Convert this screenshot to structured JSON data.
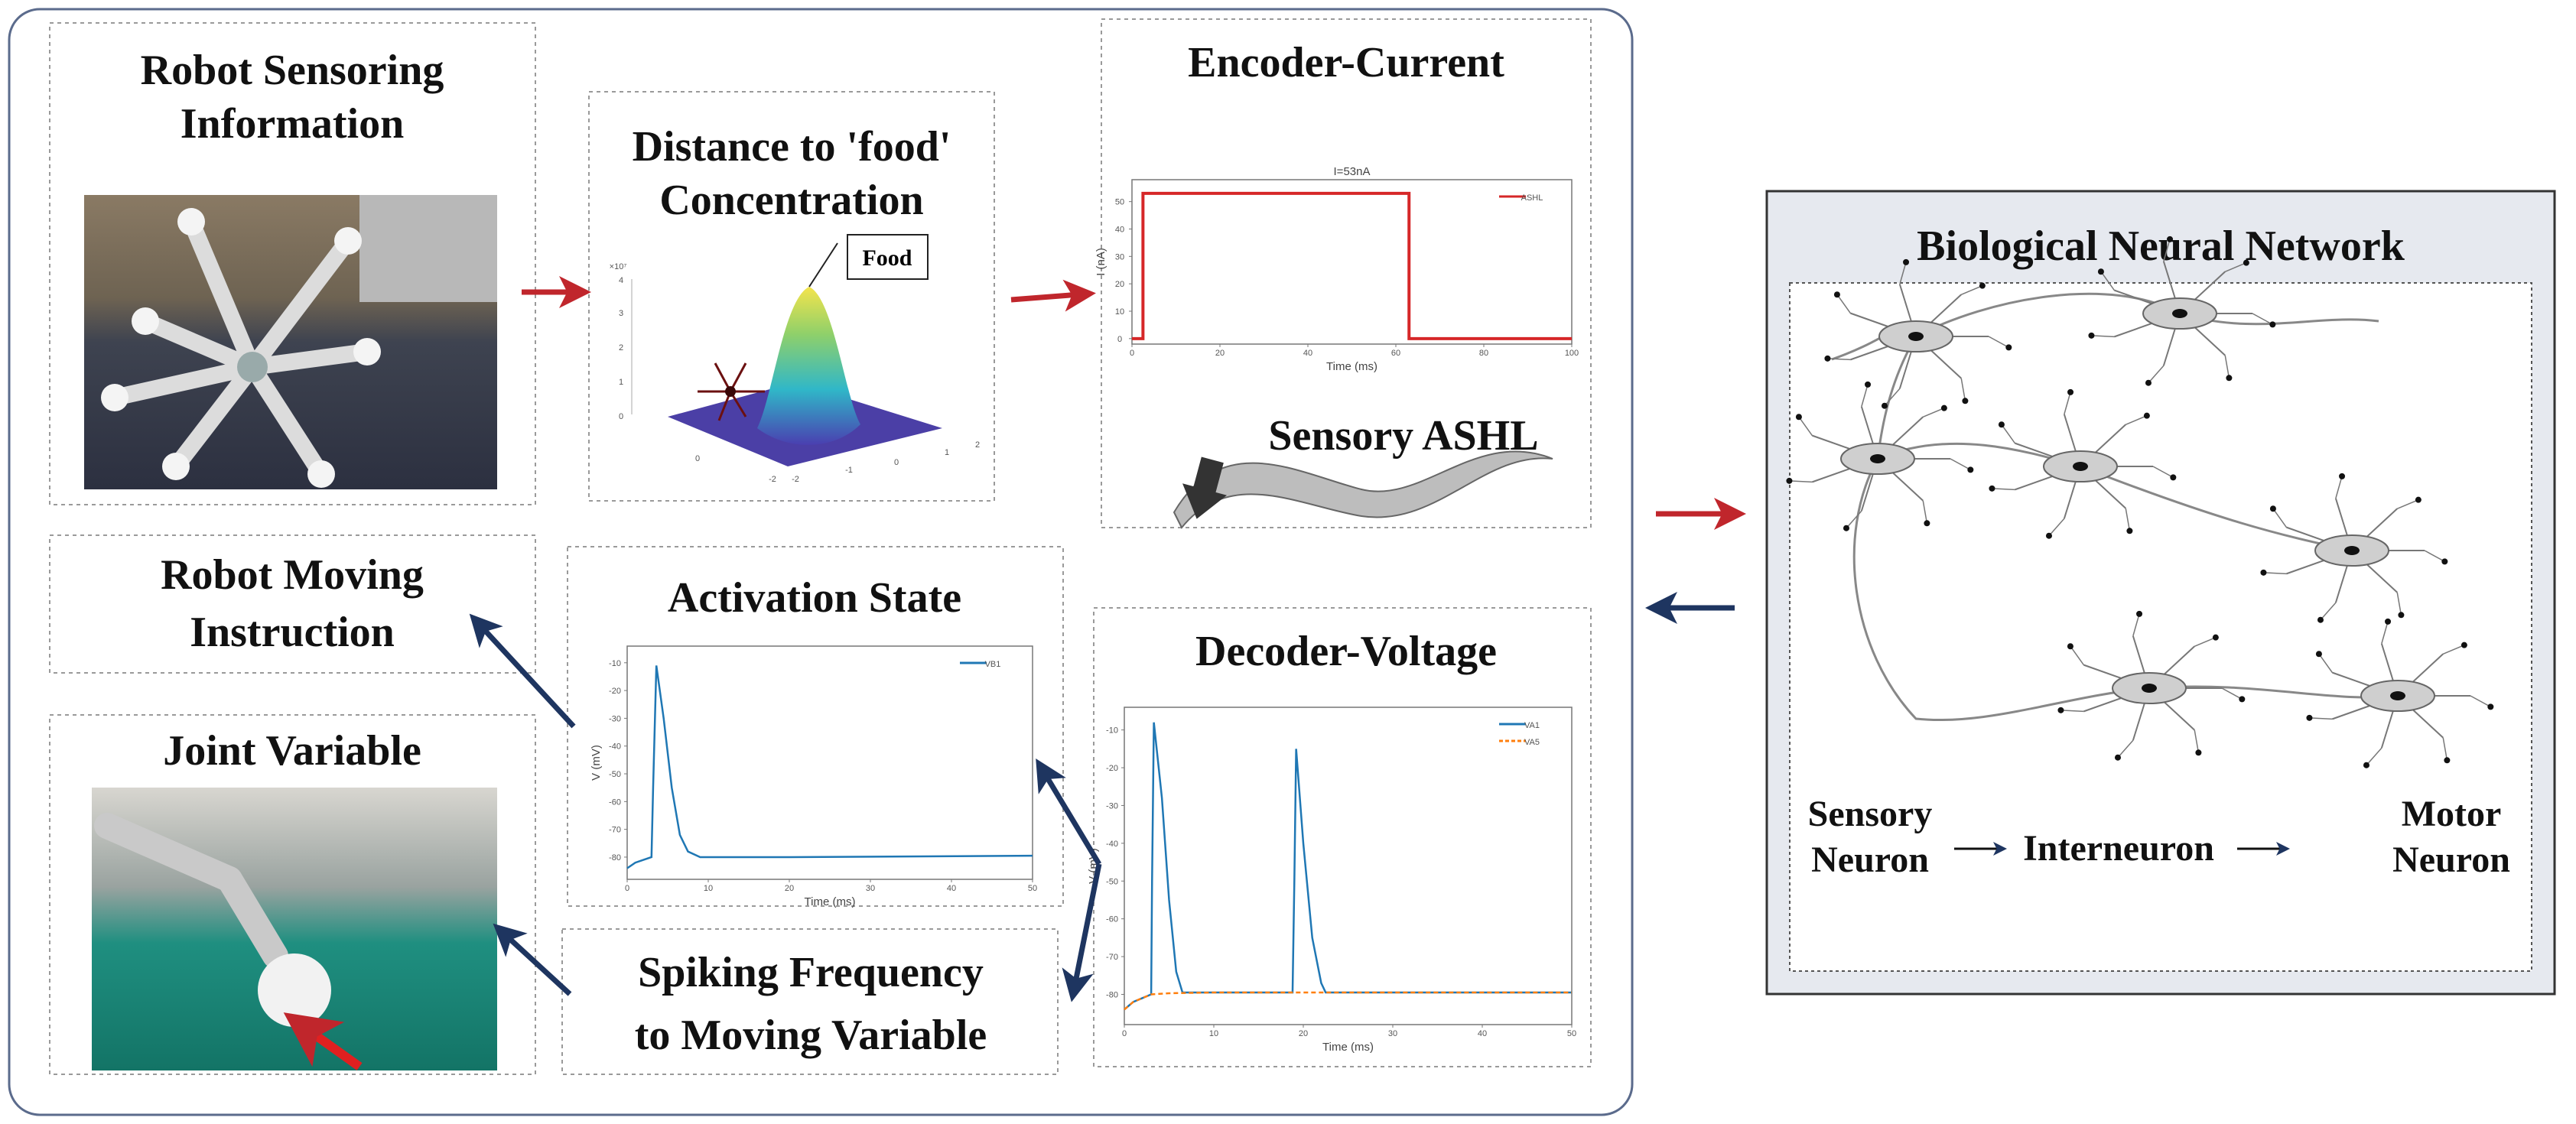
{
  "colors": {
    "forward_arrow": "#c0262c",
    "feedback_arrow": "#1e3560",
    "frame": "#5b6b8c",
    "network_panel": "#e6e9ef"
  },
  "panels": {
    "robot_sensoring": {
      "title_lines": [
        "Robot Sensoring",
        "Information"
      ],
      "image": "robot-photo"
    },
    "distance": {
      "title_lines": [
        "Distance to 'food'",
        "Concentration"
      ],
      "callout": "Food",
      "z_exponent": "×10⁷",
      "z_ticks": [
        "0",
        "1",
        "2",
        "3",
        "4"
      ],
      "x_ticks": [
        "-2",
        "-1",
        "0",
        "1",
        "2"
      ],
      "y_ticks": [
        "2",
        "0",
        "-2"
      ]
    },
    "encoder": {
      "title": "Encoder-Current",
      "subtitle": "Sensory ASHL"
    },
    "robot_moving": {
      "title_lines": [
        "Robot Moving",
        "Instruction"
      ]
    },
    "activation": {
      "title": "Activation State"
    },
    "joint": {
      "title": "Joint Variable",
      "image": "robot-arm-photo"
    },
    "spiking": {
      "title_lines": [
        "Spiking Frequency",
        "to Moving Variable"
      ]
    },
    "decoder": {
      "title": "Decoder-Voltage"
    },
    "network": {
      "title": "Biological Neural Network",
      "flow": [
        "Sensory\nNeuron",
        "Interneuron",
        "Motor\nNeuron"
      ],
      "sensory_lines": [
        "Sensory",
        "Neuron"
      ],
      "inter": "Interneuron",
      "motor_lines": [
        "Motor",
        "Neuron"
      ]
    }
  },
  "chart_data": [
    {
      "type": "line",
      "id": "encoder",
      "title": "I=53nA",
      "xlabel": "Time (ms)",
      "ylabel": "I (nA)",
      "xlim": [
        0,
        100
      ],
      "ylim": [
        -2,
        58
      ],
      "x_ticks": [
        0,
        20,
        40,
        60,
        80,
        100
      ],
      "y_ticks": [
        0,
        10,
        20,
        30,
        40,
        50
      ],
      "legend": "top-right",
      "series": [
        {
          "name": "ASHL",
          "color": "#d62728",
          "x": [
            0,
            2.5,
            2.5,
            63,
            63,
            100
          ],
          "y": [
            0,
            0,
            53,
            53,
            0,
            0
          ]
        }
      ]
    },
    {
      "type": "line",
      "id": "activation",
      "title": "",
      "xlabel": "Time (ms)",
      "ylabel": "V (mV)",
      "xlim": [
        0,
        50
      ],
      "ylim": [
        -88,
        -4
      ],
      "x_ticks": [
        0,
        10,
        20,
        30,
        40,
        50
      ],
      "y_ticks": [
        -10,
        -20,
        -30,
        -40,
        -50,
        -60,
        -70,
        -80
      ],
      "legend": "top-right",
      "series": [
        {
          "name": "VB1",
          "color": "#1f77b4",
          "x": [
            0,
            1,
            2,
            3,
            3.2,
            3.6,
            4.5,
            5.5,
            6.5,
            7.5,
            9,
            12,
            20,
            50
          ],
          "y": [
            -84,
            -82,
            -81,
            -80,
            -55,
            -11,
            -30,
            -55,
            -72,
            -78,
            -80,
            -80,
            -80,
            -79.5
          ]
        }
      ]
    },
    {
      "type": "line",
      "id": "decoder",
      "title": "",
      "xlabel": "Time (ms)",
      "ylabel": "V (mV)",
      "xlim": [
        0,
        50
      ],
      "ylim": [
        -88,
        -4
      ],
      "x_ticks": [
        0,
        10,
        20,
        30,
        40,
        50
      ],
      "y_ticks": [
        -10,
        -20,
        -30,
        -40,
        -50,
        -60,
        -70,
        -80
      ],
      "legend": "top-right",
      "series": [
        {
          "name": "VA1",
          "color": "#1f77b4",
          "x": [
            0,
            1,
            2,
            3,
            3.1,
            3.3,
            4.2,
            5,
            5.8,
            6.5,
            18.8,
            19,
            19.2,
            20,
            21,
            22,
            22.5,
            50
          ],
          "y": [
            -84,
            -82,
            -81,
            -80,
            -50,
            -8,
            -28,
            -55,
            -74,
            -79.5,
            -79.5,
            -50,
            -15,
            -40,
            -65,
            -77,
            -79.5,
            -79.5
          ]
        },
        {
          "name": "VA5",
          "color": "#ff7f0e",
          "dashed": true,
          "x": [
            0,
            1,
            2,
            3,
            5,
            10,
            50
          ],
          "y": [
            -84,
            -82,
            -81,
            -80,
            -79.7,
            -79.5,
            -79.5
          ]
        }
      ]
    }
  ]
}
